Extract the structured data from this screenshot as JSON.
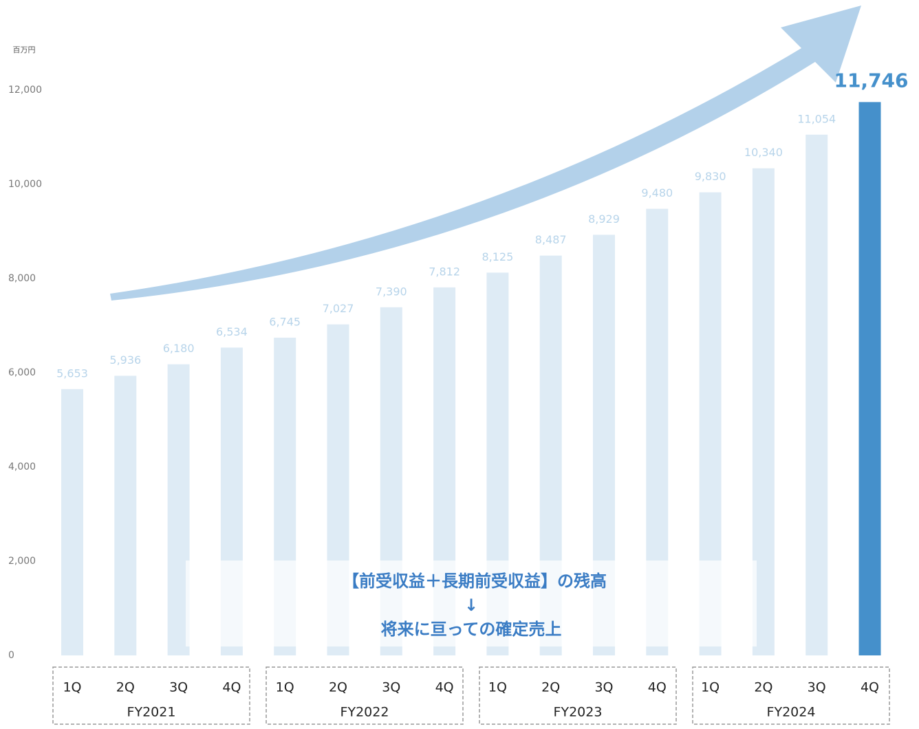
{
  "chart_data": {
    "type": "bar",
    "unit_label": "百万円",
    "categories": [
      "1Q",
      "2Q",
      "3Q",
      "4Q",
      "1Q",
      "2Q",
      "3Q",
      "4Q",
      "1Q",
      "2Q",
      "3Q",
      "4Q",
      "1Q",
      "2Q",
      "3Q",
      "4Q"
    ],
    "groups": [
      "FY2021",
      "FY2022",
      "FY2023",
      "FY2024"
    ],
    "values": [
      5653,
      5936,
      6180,
      6534,
      6745,
      7027,
      7390,
      7812,
      8125,
      8487,
      8929,
      9480,
      9830,
      10340,
      11054,
      11746
    ],
    "value_labels": [
      "5,653",
      "5,936",
      "6,180",
      "6,534",
      "6,745",
      "7,027",
      "7,390",
      "7,812",
      "8,125",
      "8,487",
      "8,929",
      "9,480",
      "9,830",
      "10,340",
      "11,054",
      "11,746"
    ],
    "colors": [
      "#deebf5",
      "#deebf5",
      "#deebf5",
      "#deebf5",
      "#deebf5",
      "#deebf5",
      "#deebf5",
      "#deebf5",
      "#deebf5",
      "#deebf5",
      "#deebf5",
      "#deebf5",
      "#deebf5",
      "#deebf5",
      "#deebf5",
      "#4590cb"
    ],
    "ylim": [
      0,
      12000
    ],
    "yticks": [
      0,
      {
        "value": 2000,
        "label": "2,000"
      },
      {
        "value": 4000,
        "label": "4,000"
      },
      {
        "value": 6000,
        "label": "6,000"
      },
      {
        "value": 8000,
        "label": "8,000"
      },
      {
        "value": 10000,
        "label": "10,000"
      },
      {
        "value": 12000,
        "label": "12,000"
      }
    ],
    "annotations": [
      "【前受収益＋長期前受収益】の残高",
      "↓",
      "将来に亘っての確定売上"
    ]
  }
}
